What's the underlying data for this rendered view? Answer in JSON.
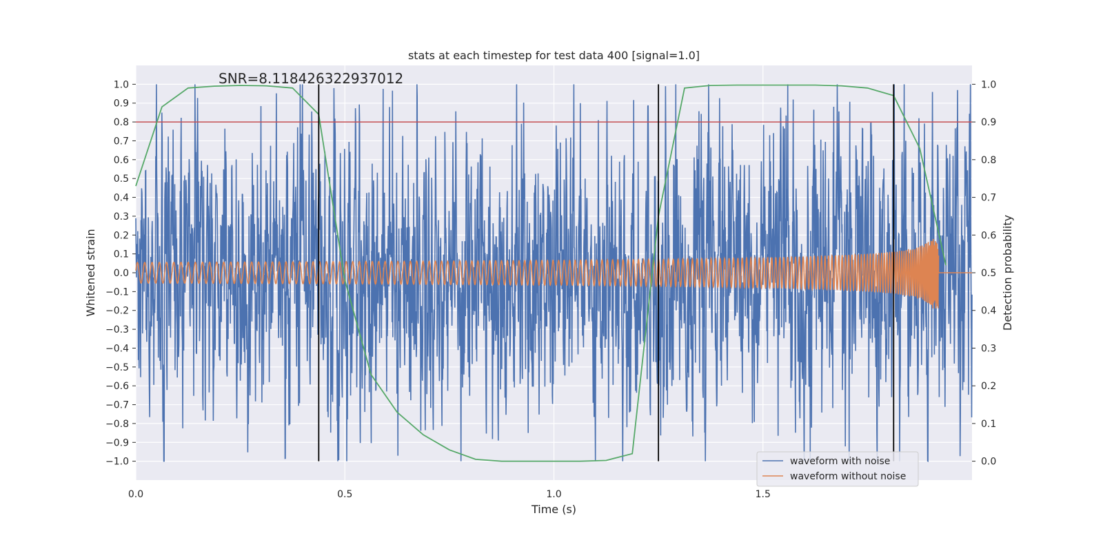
{
  "chart_data": {
    "type": "line",
    "title": "stats at each timestep for test data 400 [signal=1.0]",
    "xlabel": "Time (s)",
    "ylabel": "Whitened strain",
    "y2label": "Detection probability",
    "annotation": "SNR=8.118426322937012",
    "xlim": [
      0,
      2.0
    ],
    "ylim": [
      -1.1,
      1.1
    ],
    "y2lim": [
      -0.05,
      1.05
    ],
    "xticks": [
      0.0,
      0.5,
      1.0,
      1.5
    ],
    "xtick_labels": [
      "0.0",
      "0.5",
      "1.0",
      "1.5"
    ],
    "yticks": [
      -1.0,
      -0.9,
      -0.8,
      -0.7,
      -0.6,
      -0.5,
      -0.4,
      -0.3,
      -0.2,
      -0.1,
      0.0,
      0.1,
      0.2,
      0.3,
      0.4,
      0.5,
      0.6,
      0.7,
      0.8,
      0.9,
      1.0
    ],
    "ytick_labels": [
      "−1.0",
      "−0.9",
      "−0.8",
      "−0.7",
      "−0.6",
      "−0.5",
      "−0.4",
      "−0.3",
      "−0.2",
      "−0.1",
      "0.0",
      "0.1",
      "0.2",
      "0.3",
      "0.4",
      "0.5",
      "0.6",
      "0.7",
      "0.8",
      "0.9",
      "1.0"
    ],
    "y2ticks": [
      0.0,
      0.1,
      0.2,
      0.3,
      0.4,
      0.5,
      0.6,
      0.7,
      0.8,
      0.9,
      1.0
    ],
    "y2tick_labels": [
      "0.0",
      "0.1",
      "0.2",
      "0.3",
      "0.4",
      "0.5",
      "0.6",
      "0.7",
      "0.8",
      "0.9",
      "1.0"
    ],
    "grid": true,
    "legend_position": "lower-right",
    "series": [
      {
        "name": "waveform with noise",
        "color": "#4c72b0",
        "description_kind": "noise",
        "x_range": [
          0,
          2.0
        ],
        "amplitude_range": [
          -1.0,
          1.0
        ]
      },
      {
        "name": "waveform without noise",
        "color": "#dd8452",
        "description_kind": "chirp",
        "x_range": [
          0,
          1.92
        ]
      }
    ],
    "detection_probability": {
      "color": "#55a868",
      "x": [
        0.0,
        0.0625,
        0.125,
        0.1875,
        0.25,
        0.3125,
        0.375,
        0.4375,
        0.5,
        0.5625,
        0.625,
        0.6875,
        0.75,
        0.8125,
        0.875,
        0.9375,
        1.0,
        1.0625,
        1.125,
        1.1875,
        1.25,
        1.3125,
        1.375,
        1.4375,
        1.5,
        1.5625,
        1.625,
        1.6875,
        1.75,
        1.8125,
        1.875,
        1.9375
      ],
      "y": [
        0.73,
        0.94,
        0.99,
        0.995,
        0.997,
        0.996,
        0.99,
        0.92,
        0.48,
        0.23,
        0.13,
        0.07,
        0.03,
        0.005,
        0.0,
        0.0,
        0.0,
        0.0,
        0.002,
        0.02,
        0.65,
        0.99,
        0.997,
        0.998,
        0.998,
        0.998,
        0.998,
        0.996,
        0.99,
        0.97,
        0.83,
        0.52
      ]
    },
    "threshold": {
      "y2": 0.9,
      "color": "#c44e52"
    },
    "vertical_lines": {
      "x": [
        0.4375,
        1.25,
        1.8125
      ],
      "color": "#000000"
    }
  }
}
